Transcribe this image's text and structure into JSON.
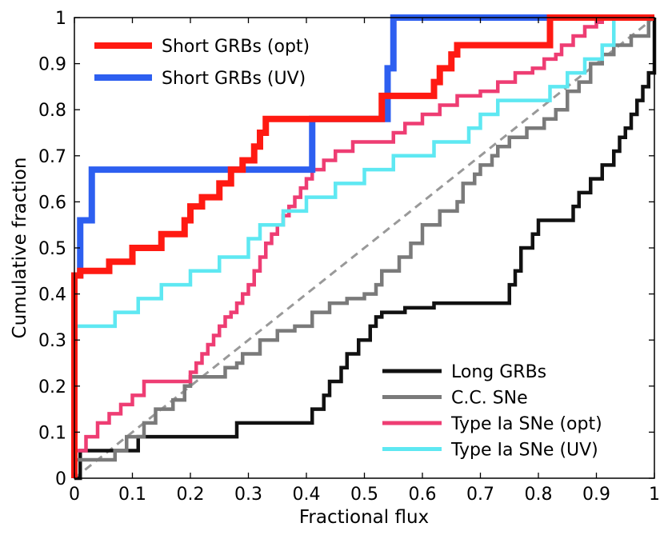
{
  "chart_data": {
    "type": "line",
    "step": true,
    "xlabel": "Fractional flux",
    "ylabel": "Cumulative fraction",
    "xlim": [
      0,
      1
    ],
    "ylim": [
      0,
      1
    ],
    "xticks": [
      0,
      0.1,
      0.2,
      0.3,
      0.4,
      0.5,
      0.6,
      0.7,
      0.8,
      0.9,
      1
    ],
    "xtick_labels": [
      "0",
      "0.1",
      "0.2",
      "0.3",
      "0.4",
      "0.5",
      "0.6",
      "0.7",
      "0.8",
      "0.9",
      "1"
    ],
    "yticks": [
      0,
      0.1,
      0.2,
      0.3,
      0.4,
      0.5,
      0.6,
      0.7,
      0.8,
      0.9,
      1
    ],
    "ytick_labels": [
      "0",
      "0.1",
      "0.2",
      "0.3",
      "0.4",
      "0.5",
      "0.6",
      "0.7",
      "0.8",
      "0.9",
      "1"
    ],
    "legends": [
      {
        "id": "top-left",
        "placement": "top-left",
        "entries": [
          "Short GRBs (opt)",
          "Short GRBs (UV)"
        ]
      },
      {
        "id": "bottom-right",
        "placement": "bottom-right",
        "entries": [
          "Long GRBs",
          "C.C. SNe",
          "Type Ia SNe (opt)",
          "Type Ia SNe (UV)"
        ]
      }
    ],
    "reference_line": {
      "name": "uniform",
      "x": [
        0,
        1
      ],
      "y": [
        0,
        1
      ],
      "color": "#999999",
      "style": "dashed"
    },
    "series": [
      {
        "name": "Long GRBs",
        "color": "#111111",
        "weight": "normal",
        "x": [
          0,
          0.01,
          0.11,
          0.28,
          0.41,
          0.43,
          0.44,
          0.46,
          0.47,
          0.49,
          0.51,
          0.52,
          0.53,
          0.57,
          0.62,
          0.63,
          0.75,
          0.76,
          0.77,
          0.79,
          0.8,
          0.82,
          0.86,
          0.87,
          0.88,
          0.89,
          0.91,
          0.93,
          0.94,
          0.95,
          0.96,
          0.97,
          0.98,
          0.99,
          1.0
        ],
        "y": [
          0,
          0.06,
          0.09,
          0.12,
          0.15,
          0.18,
          0.21,
          0.24,
          0.27,
          0.3,
          0.33,
          0.35,
          0.36,
          0.37,
          0.38,
          0.38,
          0.42,
          0.45,
          0.5,
          0.53,
          0.56,
          0.56,
          0.59,
          0.62,
          0.62,
          0.65,
          0.68,
          0.71,
          0.74,
          0.76,
          0.79,
          0.82,
          0.85,
          0.88,
          1.0
        ]
      },
      {
        "name": "C.C. SNe",
        "color": "#7a7a7a",
        "weight": "normal",
        "x": [
          0,
          0.07,
          0.09,
          0.12,
          0.14,
          0.17,
          0.19,
          0.2,
          0.23,
          0.26,
          0.28,
          0.29,
          0.32,
          0.35,
          0.38,
          0.41,
          0.44,
          0.47,
          0.5,
          0.52,
          0.53,
          0.56,
          0.58,
          0.6,
          0.63,
          0.66,
          0.67,
          0.69,
          0.7,
          0.72,
          0.73,
          0.75,
          0.78,
          0.81,
          0.83,
          0.85,
          0.87,
          0.89,
          0.91,
          0.93,
          0.96,
          0.99
        ],
        "y": [
          0.04,
          0.06,
          0.09,
          0.12,
          0.15,
          0.17,
          0.2,
          0.22,
          0.22,
          0.24,
          0.25,
          0.27,
          0.3,
          0.32,
          0.33,
          0.36,
          0.38,
          0.39,
          0.4,
          0.42,
          0.45,
          0.48,
          0.51,
          0.55,
          0.58,
          0.6,
          0.64,
          0.66,
          0.68,
          0.7,
          0.72,
          0.74,
          0.76,
          0.78,
          0.8,
          0.84,
          0.86,
          0.9,
          0.92,
          0.94,
          0.96,
          1.0
        ]
      },
      {
        "name": "Type Ia SNe (opt)",
        "color": "#ee3d73",
        "weight": "normal",
        "x": [
          0,
          0.02,
          0.04,
          0.06,
          0.08,
          0.1,
          0.12,
          0.2,
          0.21,
          0.22,
          0.23,
          0.24,
          0.25,
          0.26,
          0.27,
          0.28,
          0.29,
          0.3,
          0.31,
          0.32,
          0.33,
          0.34,
          0.35,
          0.36,
          0.37,
          0.38,
          0.39,
          0.4,
          0.41,
          0.43,
          0.45,
          0.48,
          0.55,
          0.57,
          0.6,
          0.63,
          0.66,
          0.7,
          0.73,
          0.76,
          0.79,
          0.81,
          0.83,
          0.84,
          0.86,
          0.88,
          0.9,
          0.91
        ],
        "y": [
          0.06,
          0.09,
          0.12,
          0.14,
          0.16,
          0.18,
          0.21,
          0.23,
          0.25,
          0.27,
          0.29,
          0.31,
          0.33,
          0.35,
          0.36,
          0.38,
          0.4,
          0.42,
          0.45,
          0.48,
          0.51,
          0.53,
          0.55,
          0.57,
          0.59,
          0.61,
          0.63,
          0.65,
          0.67,
          0.69,
          0.71,
          0.73,
          0.75,
          0.77,
          0.79,
          0.81,
          0.83,
          0.84,
          0.86,
          0.88,
          0.89,
          0.91,
          0.92,
          0.94,
          0.96,
          0.98,
          0.99,
          1.0
        ]
      },
      {
        "name": "Type Ia SNe (UV)",
        "color": "#5ee8f2",
        "weight": "normal",
        "x": [
          0,
          0.07,
          0.11,
          0.15,
          0.2,
          0.25,
          0.3,
          0.32,
          0.36,
          0.4,
          0.45,
          0.5,
          0.55,
          0.62,
          0.68,
          0.7,
          0.73,
          0.76,
          0.8,
          0.82,
          0.85,
          0.88,
          0.91,
          0.93
        ],
        "y": [
          0.33,
          0.36,
          0.39,
          0.42,
          0.45,
          0.48,
          0.52,
          0.55,
          0.58,
          0.61,
          0.64,
          0.67,
          0.7,
          0.73,
          0.76,
          0.79,
          0.82,
          0.82,
          0.82,
          0.85,
          0.88,
          0.91,
          0.94,
          1.0
        ]
      },
      {
        "name": "Short GRBs (UV)",
        "color": "#2d5ff0",
        "weight": "thick",
        "x": [
          0,
          0.01,
          0.03,
          0.41,
          0.54,
          0.55,
          0.56
        ],
        "y": [
          0.44,
          0.56,
          0.67,
          0.78,
          0.89,
          1.0,
          1.0
        ]
      },
      {
        "name": "Short GRBs (opt)",
        "color": "#ff1a12",
        "weight": "thick",
        "x": [
          0,
          0.01,
          0.06,
          0.1,
          0.15,
          0.19,
          0.2,
          0.22,
          0.25,
          0.27,
          0.29,
          0.31,
          0.32,
          0.33,
          0.53,
          0.62,
          0.63,
          0.65,
          0.66,
          0.82
        ],
        "y": [
          0.44,
          0.45,
          0.47,
          0.5,
          0.53,
          0.56,
          0.59,
          0.61,
          0.64,
          0.67,
          0.69,
          0.72,
          0.75,
          0.78,
          0.83,
          0.86,
          0.89,
          0.92,
          0.94,
          1.0
        ]
      }
    ]
  }
}
